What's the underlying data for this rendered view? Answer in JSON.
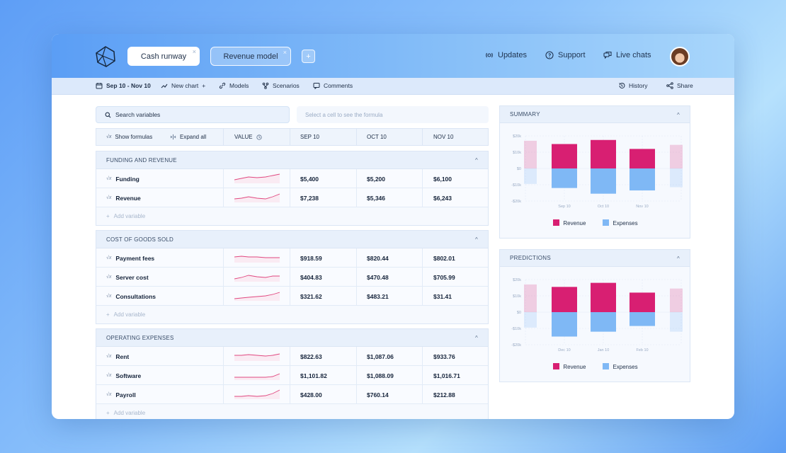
{
  "header": {
    "tabs": [
      {
        "label": "Cash runway"
      },
      {
        "label": "Revenue model"
      }
    ],
    "add_tab": "+",
    "close_glyph": "×",
    "nav": {
      "updates": "Updates",
      "support": "Support",
      "live_chats": "Live chats"
    }
  },
  "toolbar": {
    "date_range": "Sep 10 - Nov 10",
    "new_chart": "New chart",
    "new_chart_plus": "+",
    "models": "Models",
    "scenarios": "Scenarios",
    "comments": "Comments",
    "history": "History",
    "share": "Share"
  },
  "search": {
    "placeholder": "Search variables"
  },
  "formula": {
    "placeholder": "Select a cell to see the formula"
  },
  "columns": {
    "show_formulas": "Show formulas",
    "expand_all": "Expand all",
    "value": "VALUE",
    "months": [
      "SEP 10",
      "OCT 10",
      "NOV 10"
    ]
  },
  "sections": [
    {
      "title": "FUNDING AND REVENUE",
      "rows": [
        {
          "name": "Funding",
          "values": [
            "$5,400",
            "$5,200",
            "$6,100"
          ]
        },
        {
          "name": "Revenue",
          "values": [
            "$7,238",
            "$5,346",
            "$6,243"
          ]
        }
      ],
      "add_label": "Add variable"
    },
    {
      "title": "COST OF GOODS SOLD",
      "rows": [
        {
          "name": "Payment fees",
          "values": [
            "$918.59",
            "$820.44",
            "$802.01"
          ]
        },
        {
          "name": "Server cost",
          "values": [
            "$404.83",
            "$470.48",
            "$705.99"
          ]
        },
        {
          "name": "Consultations",
          "values": [
            "$321.62",
            "$483.21",
            "$31.41"
          ]
        }
      ],
      "add_label": "Add variable"
    },
    {
      "title": "OPERATING EXPENSES",
      "rows": [
        {
          "name": "Rent",
          "values": [
            "$822.63",
            "$1,087.06",
            "$933.76"
          ]
        },
        {
          "name": "Software",
          "values": [
            "$1,101.82",
            "$1,088.09",
            "$1,016.71"
          ]
        },
        {
          "name": "Payroll",
          "values": [
            "$428.00",
            "$760.14",
            "$212.88"
          ]
        }
      ],
      "add_label": "Add variable"
    }
  ],
  "fx_glyph": "√x",
  "caret_glyph": "^",
  "add_glyph": "+",
  "colors": {
    "revenue": "#d81f72",
    "expenses": "#7fb8f5",
    "sparkline": "#e0477f"
  },
  "chart_data": [
    {
      "type": "bar",
      "title": "SUMMARY",
      "categories": [
        "Sep 10",
        "Oct 10",
        "Nov 10"
      ],
      "series": [
        {
          "name": "Revenue",
          "values": [
            15000,
            17500,
            12000
          ]
        },
        {
          "name": "Expenses",
          "values": [
            -12000,
            -15500,
            -13500
          ]
        }
      ],
      "ghost_edges": {
        "left": {
          "revenue": 17000,
          "expenses": -9500
        },
        "right": {
          "revenue": 14500,
          "expenses": -11500
        }
      },
      "yticks": [
        "$20k",
        "$10k",
        "$0",
        "-$10k",
        "-$20k"
      ],
      "ylim": [
        -20000,
        20000
      ],
      "legend": "bottom"
    },
    {
      "type": "bar",
      "title": "PREDICTIONS",
      "categories": [
        "Dec 10",
        "Jan 10",
        "Feb 10"
      ],
      "series": [
        {
          "name": "Revenue",
          "values": [
            15500,
            18000,
            12000
          ]
        },
        {
          "name": "Expenses",
          "values": [
            -15000,
            -12000,
            -8500
          ]
        }
      ],
      "ghost_edges": {
        "left": {
          "revenue": 17000,
          "expenses": -9500
        },
        "right": {
          "revenue": 14500,
          "expenses": -12000
        }
      },
      "yticks": [
        "$20k",
        "$10k",
        "$0",
        "-$10k",
        "-$20k"
      ],
      "ylim": [
        -20000,
        20000
      ],
      "legend": "bottom"
    }
  ]
}
